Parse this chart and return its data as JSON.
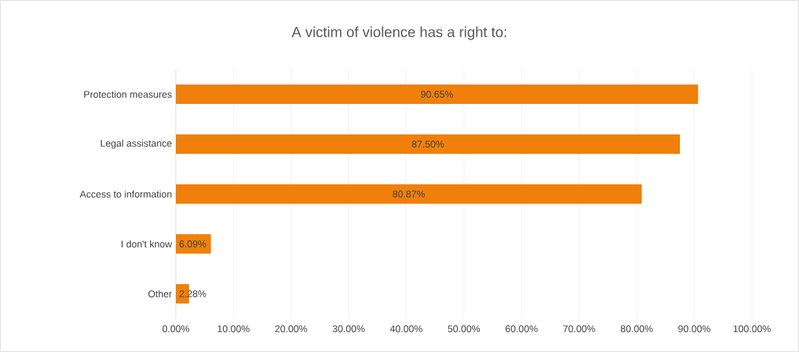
{
  "chart_data": {
    "type": "bar",
    "orientation": "horizontal",
    "title": "A victim of violence has a right to:",
    "categories": [
      "Protection measures",
      "Legal assistance",
      "Access to information",
      "I don't know",
      "Other"
    ],
    "values": [
      90.65,
      87.5,
      80.87,
      6.09,
      2.28
    ],
    "value_labels": [
      "90.65%",
      "87.50%",
      "80.87%",
      "6.09%",
      "2.28%"
    ],
    "color": "#f0800b",
    "xlim": [
      0,
      100
    ],
    "xticks": [
      {
        "value": 0,
        "label": "0.00%"
      },
      {
        "value": 10,
        "label": "10.00%"
      },
      {
        "value": 20,
        "label": "20.00%"
      },
      {
        "value": 30,
        "label": "30.00%"
      },
      {
        "value": 40,
        "label": "40.00%"
      },
      {
        "value": 50,
        "label": "50.00%"
      },
      {
        "value": 60,
        "label": "60.00%"
      },
      {
        "value": 70,
        "label": "70.00%"
      },
      {
        "value": 80,
        "label": "80.00%"
      },
      {
        "value": 90,
        "label": "90.00%"
      },
      {
        "value": 100,
        "label": "100.00%"
      }
    ],
    "grid": "x"
  }
}
